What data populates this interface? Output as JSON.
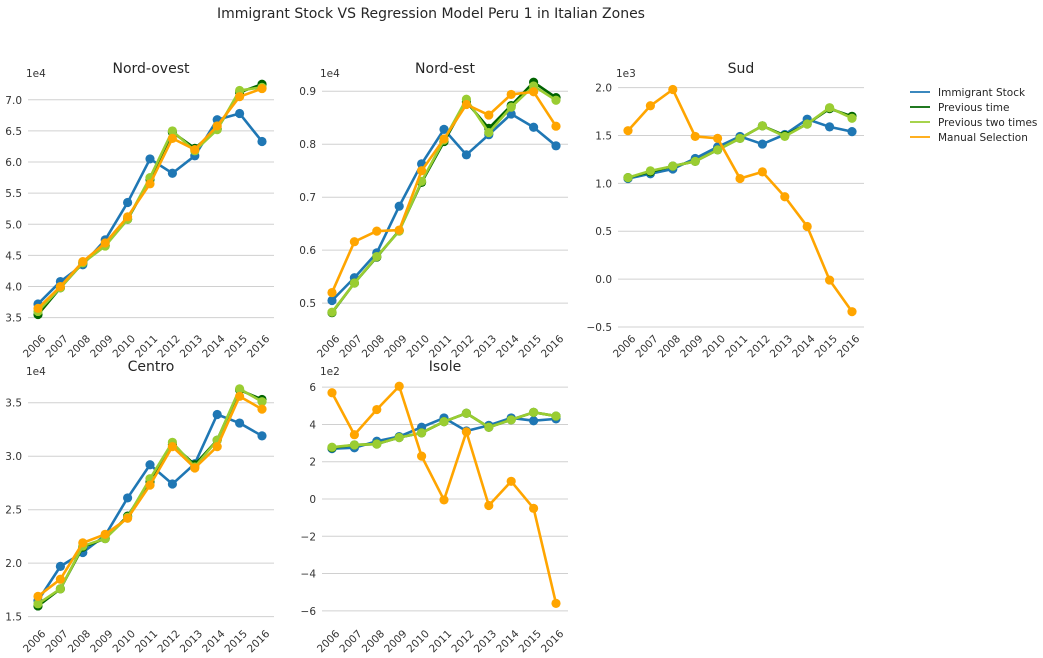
{
  "figure_title": "Immigrant Stock VS Regression Model Peru 1 in Italian Zones",
  "legend": [
    {
      "name": "Immigrant Stock",
      "color": "#1f77b4"
    },
    {
      "name": "Previous time",
      "color": "#006400"
    },
    {
      "name": "Previous two times",
      "color": "#9acd32"
    },
    {
      "name": "Manual Selection",
      "color": "#ffa500"
    }
  ],
  "chart_data": [
    {
      "type": "line",
      "title": "Nord-ovest",
      "multiplier_label": "1e4",
      "x": [
        "2006",
        "2007",
        "2008",
        "2009",
        "2010",
        "2011",
        "2012",
        "2013",
        "2014",
        "2015",
        "2016"
      ],
      "ylim": [
        3.35,
        7.35
      ],
      "yticks": [
        "3.5",
        "4.0",
        "4.5",
        "5.0",
        "5.5",
        "6.0",
        "6.5",
        "7.0"
      ],
      "series": [
        {
          "name": "Immigrant Stock",
          "values": [
            3.72,
            4.08,
            4.35,
            4.75,
            5.35,
            6.05,
            5.82,
            6.1,
            6.68,
            6.78,
            6.33
          ]
        },
        {
          "name": "Previous time",
          "values": [
            3.55,
            3.98,
            4.38,
            4.66,
            5.08,
            5.72,
            6.48,
            6.22,
            6.53,
            7.12,
            7.25
          ]
        },
        {
          "name": "Previous two times",
          "values": [
            3.6,
            3.98,
            4.38,
            4.65,
            5.08,
            5.75,
            6.5,
            6.18,
            6.52,
            7.15,
            7.2
          ]
        },
        {
          "name": "Manual Selection",
          "values": [
            3.65,
            4.0,
            4.4,
            4.7,
            5.12,
            5.65,
            6.38,
            6.2,
            6.58,
            7.05,
            7.18
          ]
        }
      ]
    },
    {
      "type": "line",
      "title": "Nord-est",
      "multiplier_label": "1e4",
      "x": [
        "2006",
        "2007",
        "2008",
        "2009",
        "2010",
        "2011",
        "2012",
        "2013",
        "2014",
        "2015",
        "2016"
      ],
      "ylim": [
        0.455,
        0.925
      ],
      "yticks": [
        "0.5",
        "0.6",
        "0.7",
        "0.8",
        "0.9"
      ],
      "series": [
        {
          "name": "Immigrant Stock",
          "values": [
            0.505,
            0.548,
            0.595,
            0.683,
            0.763,
            0.828,
            0.78,
            0.818,
            0.857,
            0.832,
            0.797
          ]
        },
        {
          "name": "Previous time",
          "values": [
            0.482,
            0.538,
            0.587,
            0.637,
            0.728,
            0.805,
            0.88,
            0.83,
            0.873,
            0.917,
            0.888
          ]
        },
        {
          "name": "Previous two times",
          "values": [
            0.483,
            0.538,
            0.588,
            0.636,
            0.73,
            0.808,
            0.885,
            0.822,
            0.87,
            0.91,
            0.883
          ]
        },
        {
          "name": "Manual Selection",
          "values": [
            0.52,
            0.616,
            0.636,
            0.638,
            0.75,
            0.81,
            0.875,
            0.855,
            0.894,
            0.899,
            0.834
          ]
        }
      ]
    },
    {
      "type": "line",
      "title": "Sud",
      "multiplier_label": "1e3",
      "x": [
        "2006",
        "2007",
        "2008",
        "2009",
        "2010",
        "2011",
        "2012",
        "2013",
        "2014",
        "2015",
        "2016"
      ],
      "ylim": [
        -0.5,
        2.1
      ],
      "yticks": [
        "−0.5",
        "0.0",
        "0.5",
        "1.0",
        "1.5",
        "2.0"
      ],
      "series": [
        {
          "name": "Immigrant Stock",
          "values": [
            1.05,
            1.1,
            1.15,
            1.26,
            1.38,
            1.49,
            1.41,
            1.51,
            1.67,
            1.59,
            1.54
          ]
        },
        {
          "name": "Previous time",
          "values": [
            1.06,
            1.12,
            1.18,
            1.23,
            1.35,
            1.47,
            1.6,
            1.5,
            1.62,
            1.78,
            1.7
          ]
        },
        {
          "name": "Previous two times",
          "values": [
            1.06,
            1.13,
            1.18,
            1.23,
            1.35,
            1.47,
            1.6,
            1.49,
            1.62,
            1.79,
            1.68
          ]
        },
        {
          "name": "Manual Selection",
          "values": [
            1.55,
            1.81,
            1.98,
            1.49,
            1.47,
            1.05,
            1.12,
            0.86,
            0.55,
            -0.01,
            -0.34
          ]
        }
      ]
    },
    {
      "type": "line",
      "title": "Centro",
      "multiplier_label": "1e4",
      "x": [
        "2006",
        "2007",
        "2008",
        "2009",
        "2010",
        "2011",
        "2012",
        "2013",
        "2014",
        "2015",
        "2016"
      ],
      "ylim": [
        1.45,
        3.75
      ],
      "yticks": [
        "1.5",
        "2.0",
        "2.5",
        "3.0",
        "3.5"
      ],
      "series": [
        {
          "name": "Immigrant Stock",
          "values": [
            1.65,
            1.97,
            2.1,
            2.26,
            2.61,
            2.92,
            2.74,
            2.93,
            3.39,
            3.31,
            3.19
          ]
        },
        {
          "name": "Previous time",
          "values": [
            1.6,
            1.76,
            2.15,
            2.23,
            2.44,
            2.76,
            3.11,
            2.92,
            3.15,
            3.62,
            3.53
          ]
        },
        {
          "name": "Previous two times",
          "values": [
            1.62,
            1.76,
            2.16,
            2.23,
            2.43,
            2.79,
            3.13,
            2.9,
            3.15,
            3.63,
            3.51
          ]
        },
        {
          "name": "Manual Selection",
          "values": [
            1.69,
            1.85,
            2.19,
            2.27,
            2.42,
            2.73,
            3.09,
            2.89,
            3.09,
            3.56,
            3.44
          ]
        }
      ]
    },
    {
      "type": "line",
      "title": "Isole",
      "multiplier_label": "1e2",
      "x": [
        "2006",
        "2007",
        "2008",
        "2009",
        "2010",
        "2011",
        "2012",
        "2013",
        "2014",
        "2015",
        "2016"
      ],
      "ylim": [
        -6.6,
        6.6
      ],
      "yticks": [
        "−6",
        "−4",
        "−2",
        "0",
        "2",
        "4",
        "6"
      ],
      "series": [
        {
          "name": "Immigrant Stock",
          "values": [
            2.7,
            2.75,
            3.1,
            3.35,
            3.85,
            4.35,
            3.65,
            3.95,
            4.35,
            4.2,
            4.3
          ]
        },
        {
          "name": "Previous time",
          "values": [
            2.75,
            2.9,
            2.95,
            3.3,
            3.55,
            4.15,
            4.6,
            3.85,
            4.25,
            4.65,
            4.45
          ]
        },
        {
          "name": "Previous two times",
          "values": [
            2.78,
            2.9,
            2.95,
            3.3,
            3.55,
            4.15,
            4.6,
            3.85,
            4.25,
            4.65,
            4.45
          ]
        },
        {
          "name": "Manual Selection",
          "values": [
            5.7,
            3.45,
            4.8,
            6.05,
            2.3,
            -0.05,
            3.6,
            -0.35,
            0.95,
            -0.5,
            -5.6
          ]
        }
      ]
    }
  ]
}
